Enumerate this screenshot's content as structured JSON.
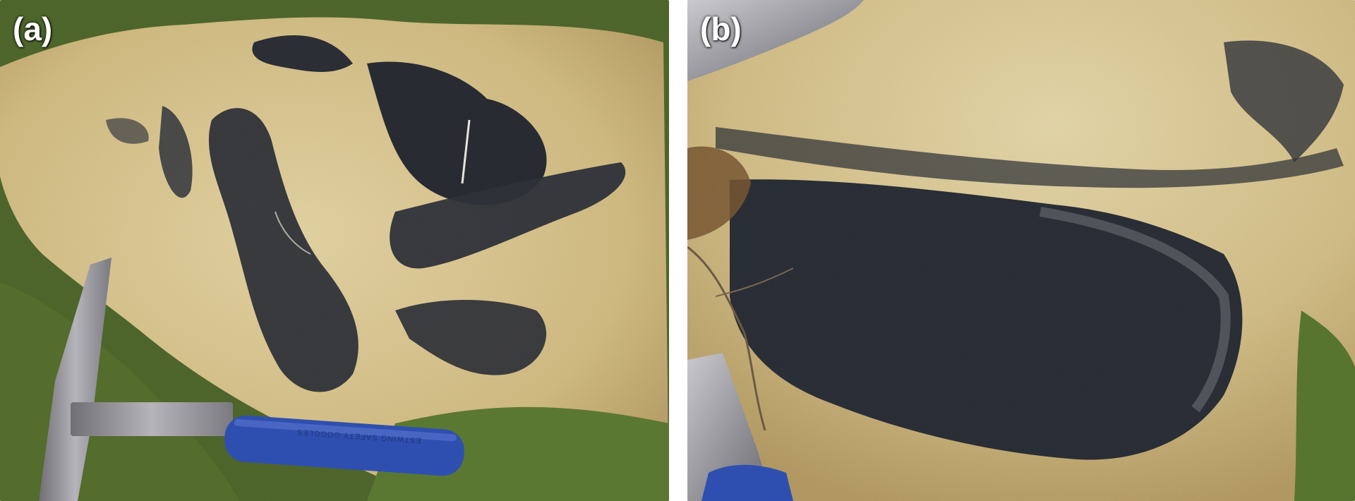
{
  "figure": {
    "panels": [
      {
        "label": "(a)"
      },
      {
        "label": "(b)"
      }
    ],
    "hammer_handle_text": "ESTWING SAFETY GOGGLES"
  },
  "colors": {
    "rock_tan": "#d8c38b",
    "rock_pale": "#e6d7a8",
    "rock_dark": "#2c3038",
    "grass": "#5d7a34",
    "hammer_steel": "#9a9aa0",
    "handle_blue": "#2f4fb0",
    "background": "#ffffff"
  }
}
